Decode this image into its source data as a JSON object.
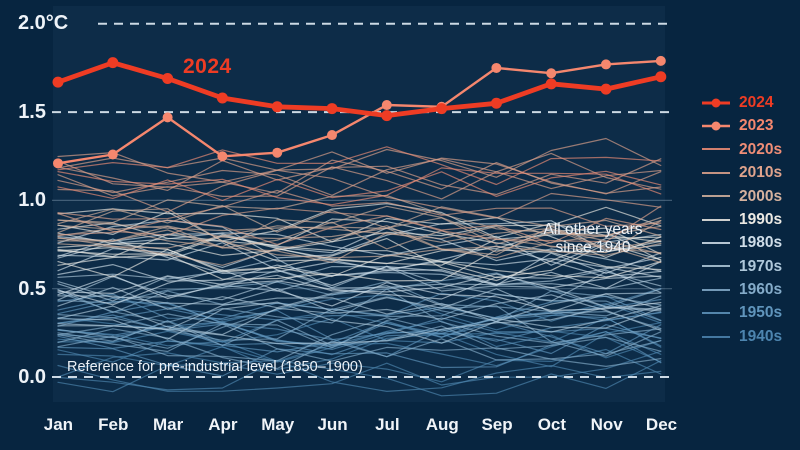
{
  "canvas": {
    "background": "#072540",
    "plot_background": "rgba(125,175,215,0.055)",
    "gridline_dashed_color": "rgba(225,236,245,0.9)",
    "gridline_faint_color": "rgba(205,225,240,0.28)"
  },
  "chart_data": {
    "type": "line",
    "x_categories": [
      "Jan",
      "Feb",
      "Mar",
      "Apr",
      "May",
      "Jun",
      "Jul",
      "Aug",
      "Sep",
      "Oct",
      "Nov",
      "Dec"
    ],
    "y_axis": {
      "unit": "°C",
      "range": [
        -0.15,
        2.05
      ],
      "ticks": [
        {
          "label": "2.0°C",
          "value": 2.0
        },
        {
          "label": "1.5",
          "value": 1.5
        },
        {
          "label": "1.0",
          "value": 1.0
        },
        {
          "label": "0.5",
          "value": 0.5
        },
        {
          "label": "0.0",
          "value": 0.0
        }
      ],
      "gridlines": {
        "dashed": [
          2.0,
          1.5,
          0.0
        ],
        "faint_solid": [
          1.0,
          0.5
        ]
      }
    },
    "series": [
      {
        "name": "2024",
        "color": "#ee3c24",
        "line_width": 4.8,
        "marker": "dot",
        "marker_radius": 5.5,
        "values": [
          1.67,
          1.78,
          1.69,
          1.58,
          1.53,
          1.52,
          1.48,
          1.52,
          1.55,
          1.66,
          1.63,
          1.7
        ]
      },
      {
        "name": "2023",
        "color": "#f5876e",
        "line_width": 2.4,
        "marker": "dot",
        "marker_radius": 5,
        "values": [
          1.21,
          1.26,
          1.47,
          1.25,
          1.27,
          1.37,
          1.54,
          1.53,
          1.75,
          1.72,
          1.77,
          1.79
        ]
      }
    ],
    "background_years": {
      "description": "All other years since 1940, one thin line per year, colored by decade",
      "decades": [
        {
          "name": "2020s",
          "color": "#ef8d76",
          "years": 3,
          "min": 1.02,
          "max": 1.28
        },
        {
          "name": "2010s",
          "color": "#dfa38c",
          "years": 10,
          "min": 0.86,
          "max": 1.2
        },
        {
          "name": "2000s",
          "color": "#d5b29e",
          "years": 10,
          "min": 0.76,
          "max": 1.0
        },
        {
          "name": "1990s",
          "color": "#ebe9e3",
          "years": 10,
          "min": 0.6,
          "max": 0.88
        },
        {
          "name": "1980s",
          "color": "#cfdde8",
          "years": 10,
          "min": 0.48,
          "max": 0.76
        },
        {
          "name": "1970s",
          "color": "#afc8da",
          "years": 10,
          "min": 0.3,
          "max": 0.58
        },
        {
          "name": "1960s",
          "color": "#84abc9",
          "years": 10,
          "min": 0.2,
          "max": 0.5
        },
        {
          "name": "1950s",
          "color": "#6095bc",
          "years": 10,
          "min": 0.1,
          "max": 0.42
        },
        {
          "name": "1940s",
          "color": "#4d85af",
          "years": 10,
          "min": 0.02,
          "max": 0.4
        }
      ]
    },
    "annotations": {
      "series_label_2024": "2024",
      "other_years_line1": "All other years",
      "other_years_line2": "since 1940",
      "reference_label": "Reference for pre-industrial level (1850–1900)"
    }
  },
  "legend": {
    "items": [
      {
        "label": "2024",
        "color": "#ee3c24",
        "marker": "line-dot"
      },
      {
        "label": "2023",
        "color": "#f5876e",
        "marker": "line-dot"
      },
      {
        "label": "2020s",
        "color": "#ef8d76",
        "marker": "line"
      },
      {
        "label": "2010s",
        "color": "#dfa38c",
        "marker": "line"
      },
      {
        "label": "2000s",
        "color": "#d5b29e",
        "marker": "line"
      },
      {
        "label": "1990s",
        "color": "#ebe9e3",
        "marker": "line"
      },
      {
        "label": "1980s",
        "color": "#cfdde8",
        "marker": "line"
      },
      {
        "label": "1970s",
        "color": "#afc8da",
        "marker": "line"
      },
      {
        "label": "1960s",
        "color": "#84abc9",
        "marker": "line"
      },
      {
        "label": "1950s",
        "color": "#6095bc",
        "marker": "line"
      },
      {
        "label": "1940s",
        "color": "#4d85af",
        "marker": "line"
      }
    ]
  }
}
